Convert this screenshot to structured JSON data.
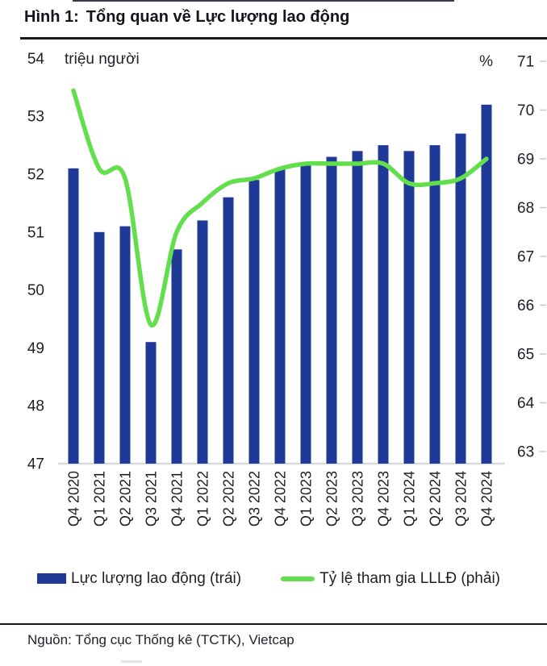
{
  "figure": {
    "label": "Hình 1:",
    "title": "Tổng quan về Lực lượng lao động",
    "source": "Nguồn: Tổng cục Thống kê (TCTK), Vietcap"
  },
  "legend": {
    "bars_label": "Lực lượng lao động (trái)",
    "line_label": "Tỷ lệ tham gia LLLĐ (phải)"
  },
  "colors": {
    "bar": "#1e3a96",
    "line": "#63de4d",
    "axis_baseline": "#d9d9d9",
    "tick_mark": "#c9c9c9",
    "text": "#1f1f28",
    "rule": "#17171f"
  },
  "chart_data": {
    "type": "bar+line",
    "title": "Hình 1: Tổng quan về Lực lượng lao động",
    "categories": [
      "Q4 2020",
      "Q1 2021",
      "Q2 2021",
      "Q3 2021",
      "Q4 2021",
      "Q1 2022",
      "Q2 2022",
      "Q3 2022",
      "Q4 2022",
      "Q1 2023",
      "Q2 2023",
      "Q3 2023",
      "Q4 2023",
      "Q1 2024",
      "Q2 2024",
      "Q3 2024",
      "Q4 2024"
    ],
    "series": [
      {
        "name": "Lực lượng lao động (trái)",
        "type": "bar",
        "axis": "left",
        "unit": "triệu người",
        "values": [
          52.1,
          51.0,
          51.1,
          49.1,
          50.7,
          51.2,
          51.6,
          51.9,
          52.1,
          52.2,
          52.3,
          52.4,
          52.5,
          52.4,
          52.5,
          52.7,
          53.2
        ]
      },
      {
        "name": "Tỷ lệ tham gia LLLĐ (phải)",
        "type": "line",
        "axis": "right",
        "unit": "%",
        "values": [
          70.4,
          68.8,
          68.6,
          65.6,
          67.5,
          68.1,
          68.5,
          68.6,
          68.8,
          68.9,
          68.9,
          68.9,
          68.9,
          68.5,
          68.5,
          68.6,
          69.0
        ]
      }
    ],
    "left_axis": {
      "unit_label": "triệu người",
      "ticks": [
        54,
        53,
        52,
        51,
        50,
        49,
        48,
        47
      ],
      "range": [
        47,
        54
      ]
    },
    "right_axis": {
      "unit_label": "%",
      "ticks": [
        71,
        70,
        69,
        68,
        67,
        66,
        65,
        64,
        63
      ],
      "range": [
        63,
        71
      ]
    },
    "grid": false,
    "legend_position": "bottom"
  }
}
